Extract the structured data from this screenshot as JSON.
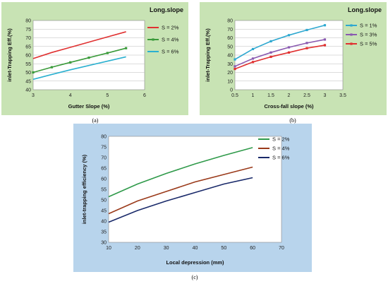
{
  "chart_data": [
    {
      "id": "a",
      "type": "line",
      "title": "Long.slope",
      "xlabel": "Gutter Slope (%)",
      "ylabel": "inlet-Trapping Eff.(%)",
      "xlim": [
        3,
        6
      ],
      "ylim": [
        40,
        80
      ],
      "xticks": [
        "3",
        "4",
        "5",
        "6"
      ],
      "yticks": [
        "40",
        "45",
        "50",
        "55",
        "60",
        "65",
        "70",
        "75",
        "80"
      ],
      "grid": true,
      "legend_position": "right",
      "background": "#c8e3b4",
      "series": [
        {
          "name": "S = 2%",
          "color": "#e03030",
          "markers": false,
          "x": [
            3,
            3.5,
            4,
            4.5,
            5,
            5.5
          ],
          "y": [
            58,
            61.5,
            64.5,
            67.5,
            70.5,
            73.5
          ]
        },
        {
          "name": "S = 4%",
          "color": "#3a9a3a",
          "markers": true,
          "x": [
            3,
            3.5,
            4,
            4.5,
            5,
            5.5
          ],
          "y": [
            50,
            53,
            55.8,
            58.5,
            61.2,
            64
          ]
        },
        {
          "name": "S = 6%",
          "color": "#2bb0d0",
          "markers": false,
          "x": [
            3,
            3.5,
            4,
            4.5,
            5,
            5.5
          ],
          "y": [
            46,
            48.8,
            51.5,
            54,
            56.5,
            59
          ]
        }
      ]
    },
    {
      "id": "b",
      "type": "line",
      "title": "Long.slope",
      "xlabel": "Cross-fall slope (%)",
      "ylabel": "inlet-Trapping Eff.(%)",
      "xlim": [
        0.5,
        3.5
      ],
      "ylim": [
        0,
        80
      ],
      "xticks": [
        "0.5",
        "1",
        "1.5",
        "2",
        "2.5",
        "3",
        "3.5"
      ],
      "yticks": [
        "0",
        "10",
        "20",
        "30",
        "40",
        "50",
        "60",
        "70",
        "80"
      ],
      "grid": true,
      "legend_position": "right",
      "background": "#c8e3b4",
      "series": [
        {
          "name": "S = 1%",
          "color": "#2ea8d0",
          "markers": true,
          "x": [
            0.5,
            1,
            1.5,
            2,
            2.5,
            3
          ],
          "y": [
            35,
            47,
            56,
            63,
            69,
            74.5
          ]
        },
        {
          "name": "S = 3%",
          "color": "#8a5ab0",
          "markers": true,
          "x": [
            0.5,
            1,
            1.5,
            2,
            2.5,
            3
          ],
          "y": [
            27,
            36,
            43,
            49,
            54,
            58
          ]
        },
        {
          "name": "S = 5%",
          "color": "#e03030",
          "markers": true,
          "x": [
            0.5,
            1,
            1.5,
            2,
            2.5,
            3
          ],
          "y": [
            24,
            32,
            38,
            43,
            48,
            51.5
          ]
        }
      ]
    },
    {
      "id": "c",
      "type": "line",
      "title": "",
      "xlabel": "Local depression (mm)",
      "ylabel": "inlet-trapping efficiency (%)",
      "xlim": [
        10,
        70
      ],
      "ylim": [
        30,
        80
      ],
      "xticks": [
        "10",
        "20",
        "30",
        "40",
        "50",
        "60",
        "70"
      ],
      "yticks": [
        "30",
        "35",
        "40",
        "45",
        "50",
        "55",
        "60",
        "65",
        "70",
        "75",
        "80"
      ],
      "grid": false,
      "legend_position": "right",
      "background": "#b8d4ec",
      "series": [
        {
          "name": "S = 2%",
          "color": "#2f9a4a",
          "markers": false,
          "x": [
            10,
            20,
            30,
            40,
            50,
            60
          ],
          "y": [
            51.5,
            57.5,
            62.5,
            67,
            71,
            74.7
          ]
        },
        {
          "name": "S = 4%",
          "color": "#9a3a1a",
          "markers": false,
          "x": [
            10,
            20,
            30,
            40,
            50,
            60
          ],
          "y": [
            43.5,
            49.5,
            54,
            58.5,
            62,
            65.5
          ]
        },
        {
          "name": "S = 6%",
          "color": "#1a2a6a",
          "markers": false,
          "x": [
            10,
            20,
            30,
            40,
            50,
            60
          ],
          "y": [
            39.5,
            45,
            49.5,
            53.5,
            57.5,
            60.5
          ]
        }
      ]
    }
  ],
  "captions": {
    "a": "(a)",
    "b": "(b)",
    "c": "(c)"
  }
}
